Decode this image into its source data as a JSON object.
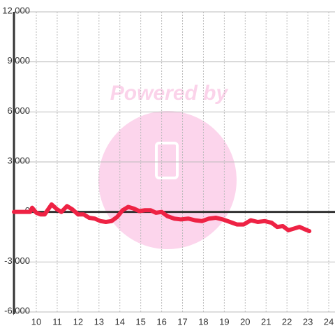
{
  "chart_data": {
    "type": "line",
    "watermark": "Powered by",
    "x": [
      8.93,
      9.7,
      9.8,
      10,
      10.2,
      10.4,
      10.73,
      11,
      11.2,
      11.47,
      11.73,
      12,
      12.27,
      12.53,
      12.8,
      13.07,
      13.33,
      13.6,
      13.87,
      14.13,
      14.4,
      14.67,
      14.93,
      15.2,
      15.47,
      15.73,
      16,
      16.27,
      16.6,
      16.93,
      17.27,
      17.6,
      17.93,
      18.27,
      18.6,
      18.93,
      19.27,
      19.6,
      19.93,
      20.27,
      20.6,
      20.93,
      21.27,
      21.53,
      21.8,
      22.07,
      22.33,
      22.6,
      22.87,
      23.07
    ],
    "series": [
      {
        "color": "#ee2244",
        "values": [
          0,
          0,
          250,
          -50,
          -150,
          -150,
          450,
          150,
          0,
          350,
          150,
          -150,
          -150,
          -350,
          -400,
          -550,
          -600,
          -550,
          -300,
          100,
          300,
          200,
          50,
          100,
          100,
          -50,
          0,
          -250,
          -400,
          -450,
          -400,
          -500,
          -550,
          -400,
          -350,
          -450,
          -600,
          -750,
          -750,
          -500,
          -600,
          -550,
          -650,
          -900,
          -850,
          -1100,
          -1000,
          -900,
          -1050,
          -1150
        ]
      }
    ],
    "xlim": [
      8.93,
      24.3
    ],
    "xticks": [
      10,
      11,
      12,
      13,
      14,
      15,
      16,
      17,
      18,
      19,
      20,
      21,
      22,
      23,
      24
    ],
    "ylim": [
      -6000,
      12000
    ],
    "yticks": [
      {
        "value": -6000,
        "label": "-6,000"
      },
      {
        "value": -3000,
        "label": "-3,000"
      },
      0,
      {
        "value": 3000,
        "label": "3,000"
      },
      {
        "value": 6000,
        "label": "6,000"
      },
      {
        "value": 9000,
        "label": "9,000"
      },
      {
        "value": 12000,
        "label": "12,000"
      }
    ],
    "grid": true
  }
}
